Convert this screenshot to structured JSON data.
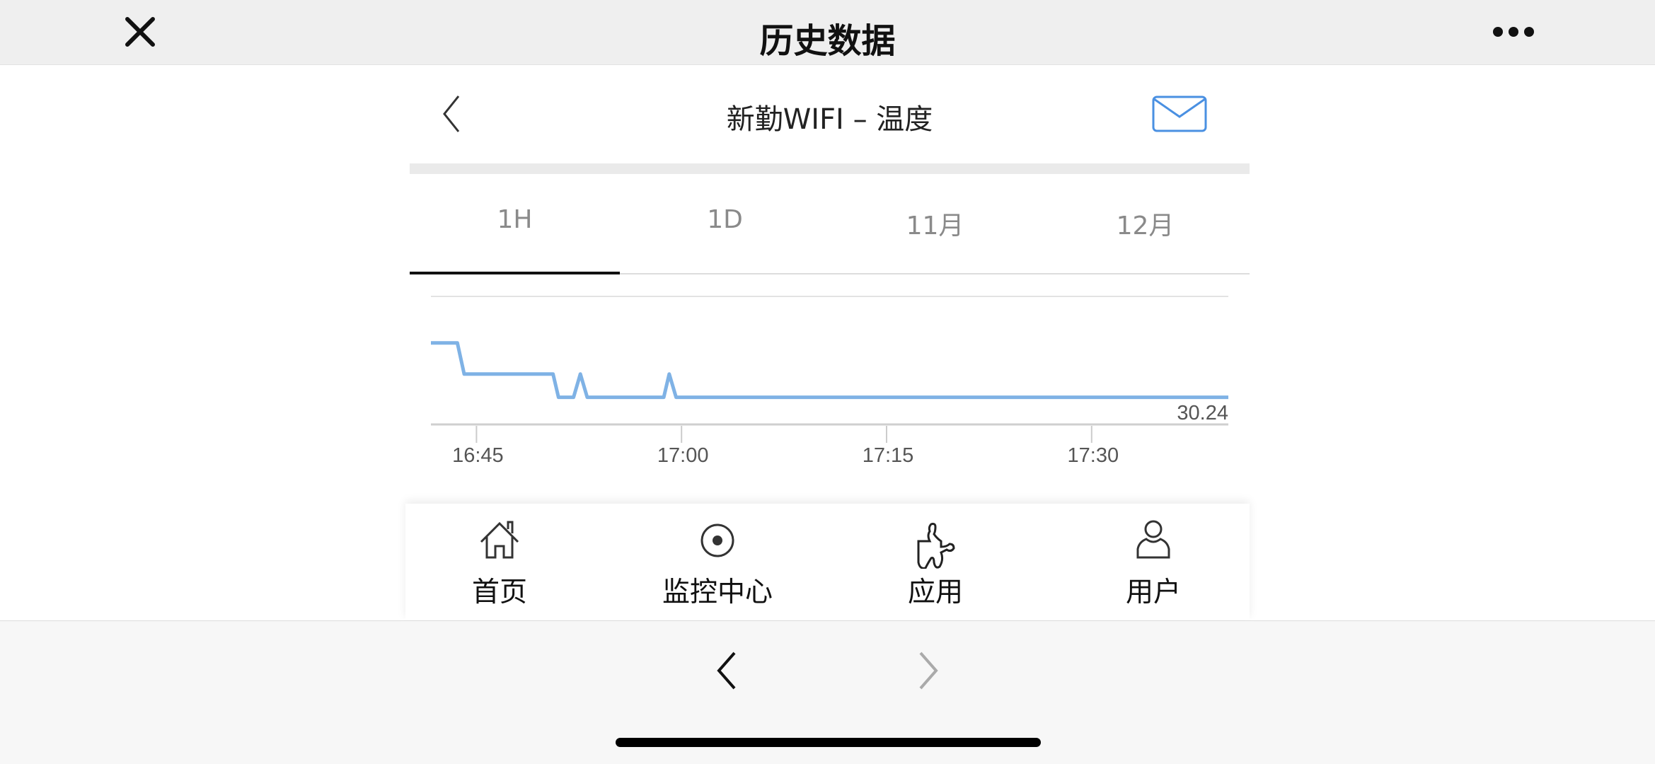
{
  "top_bar": {
    "title": "历史数据",
    "close_icon": "close-icon",
    "more_icon": "more-icon"
  },
  "header": {
    "title": "新勤WIFI – 温度",
    "back_icon": "chevron-left-icon",
    "mail_icon": "mail-icon",
    "accent": "#4a90e2"
  },
  "tabs": [
    {
      "label": "1H",
      "selected": true
    },
    {
      "label": "1D"
    },
    {
      "label": "11月"
    },
    {
      "label": "12月"
    }
  ],
  "chart_data": {
    "type": "line",
    "x_ticks": [
      "16:45",
      "17:00",
      "17:15",
      "17:30"
    ],
    "xlim": [
      "16:41:40",
      "17:40:00"
    ],
    "ylim": [
      30.17,
      30.5
    ],
    "last_value_label": "30.24",
    "line_color": "#7fb2e5",
    "grid": false,
    "points": [
      [
        "16:41:40",
        30.38
      ],
      [
        "16:43:36",
        30.38
      ],
      [
        "16:44:06",
        30.3
      ],
      [
        "16:50:36",
        30.3
      ],
      [
        "16:51:00",
        30.24
      ],
      [
        "16:52:06",
        30.24
      ],
      [
        "16:52:36",
        30.3
      ],
      [
        "16:53:06",
        30.24
      ],
      [
        "16:58:42",
        30.24
      ],
      [
        "16:59:06",
        30.3
      ],
      [
        "16:59:36",
        30.24
      ],
      [
        "17:40:00",
        30.24
      ]
    ]
  },
  "bottom_nav": [
    {
      "label": "首页",
      "icon": "home-icon"
    },
    {
      "label": "监控中心",
      "icon": "target-icon"
    },
    {
      "label": "应用",
      "icon": "puzzle-icon"
    },
    {
      "label": "用户",
      "icon": "user-icon"
    }
  ],
  "browser": {
    "back_icon": "chevron-left-icon",
    "forward_icon": "chevron-right-icon"
  }
}
